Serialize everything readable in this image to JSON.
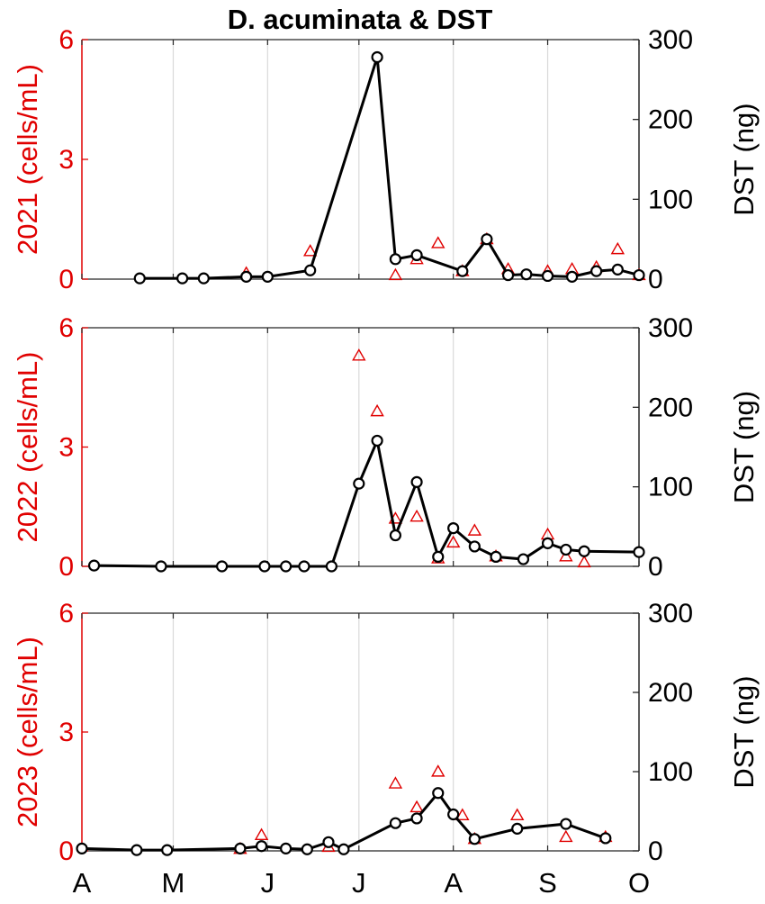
{
  "colors": {
    "cells": "#e00000",
    "dst": "#000000",
    "grid": "#d9d9d9"
  },
  "chart_data": {
    "type": "scatter",
    "title": "D. acuminata & DST",
    "x_tick_labels": [
      "A",
      "M",
      "J",
      "J",
      "A",
      "S",
      "O"
    ],
    "x_tick_days": [
      0,
      30,
      61,
      91,
      122,
      153,
      183
    ],
    "xlim": [
      0,
      183
    ],
    "left_axis": {
      "color": "#e00000",
      "ylim": [
        0,
        6
      ],
      "ticks": [
        "0",
        "3",
        "6"
      ]
    },
    "right_axis": {
      "label": "DST (ng)",
      "ylim": [
        0,
        300
      ],
      "ticks": [
        "0",
        "100",
        "200",
        "300"
      ]
    },
    "panels": [
      {
        "ylabel_left": "2021 (cells/mL)",
        "cells_triangles": [
          [
            54,
            0.15
          ],
          [
            75,
            0.7
          ],
          [
            103,
            0.1
          ],
          [
            110,
            0.5
          ],
          [
            117,
            0.9
          ],
          [
            125,
            0.2
          ],
          [
            133,
            1.0
          ],
          [
            140,
            0.25
          ],
          [
            153,
            0.2
          ],
          [
            161,
            0.25
          ],
          [
            169,
            0.3
          ],
          [
            176,
            0.75
          ],
          [
            183,
            0.1
          ]
        ],
        "dst_line": [
          [
            19,
            1
          ],
          [
            33,
            1
          ],
          [
            40,
            1
          ],
          [
            54,
            3
          ],
          [
            61,
            3
          ],
          [
            75,
            11
          ],
          [
            97,
            278
          ],
          [
            103,
            25
          ],
          [
            110,
            30
          ],
          [
            125,
            10
          ],
          [
            133,
            50
          ],
          [
            140,
            5
          ],
          [
            146,
            6
          ],
          [
            153,
            4
          ],
          [
            161,
            3
          ],
          [
            169,
            10
          ],
          [
            176,
            12
          ],
          [
            183,
            5
          ]
        ]
      },
      {
        "ylabel_left": "2022 (cells/mL)",
        "cells_triangles": [
          [
            91,
            5.3
          ],
          [
            97,
            3.9
          ],
          [
            103,
            1.2
          ],
          [
            110,
            1.25
          ],
          [
            117,
            0.2
          ],
          [
            122,
            0.6
          ],
          [
            129,
            0.9
          ],
          [
            136,
            0.25
          ],
          [
            153,
            0.8
          ],
          [
            159,
            0.25
          ],
          [
            165,
            0.1
          ]
        ],
        "dst_line": [
          [
            4,
            1
          ],
          [
            26,
            0
          ],
          [
            46,
            0
          ],
          [
            60,
            0
          ],
          [
            67,
            0
          ],
          [
            73,
            0
          ],
          [
            82,
            0
          ],
          [
            91,
            104
          ],
          [
            97,
            158
          ],
          [
            103,
            39
          ],
          [
            110,
            106
          ],
          [
            117,
            12
          ],
          [
            122,
            48
          ],
          [
            129,
            25
          ],
          [
            136,
            12
          ],
          [
            145,
            9
          ],
          [
            153,
            29
          ],
          [
            159,
            21
          ],
          [
            165,
            19
          ],
          [
            183,
            18
          ]
        ]
      },
      {
        "ylabel_left": "2023 (cells/mL)",
        "cells_triangles": [
          [
            52,
            0.05
          ],
          [
            59,
            0.4
          ],
          [
            81,
            0.1
          ],
          [
            103,
            1.7
          ],
          [
            110,
            1.1
          ],
          [
            117,
            2.0
          ],
          [
            125,
            0.9
          ],
          [
            129,
            0.3
          ],
          [
            143,
            0.9
          ],
          [
            159,
            0.35
          ],
          [
            172,
            0.35
          ]
        ],
        "dst_line": [
          [
            0,
            3
          ],
          [
            18,
            1
          ],
          [
            28,
            1
          ],
          [
            52,
            3
          ],
          [
            59,
            6
          ],
          [
            67,
            3
          ],
          [
            74,
            2
          ],
          [
            81,
            11
          ],
          [
            86,
            2
          ],
          [
            103,
            35
          ],
          [
            110,
            41
          ],
          [
            117,
            73
          ],
          [
            122,
            46
          ],
          [
            129,
            15
          ],
          [
            143,
            28
          ],
          [
            159,
            34
          ],
          [
            172,
            16
          ]
        ]
      }
    ]
  }
}
